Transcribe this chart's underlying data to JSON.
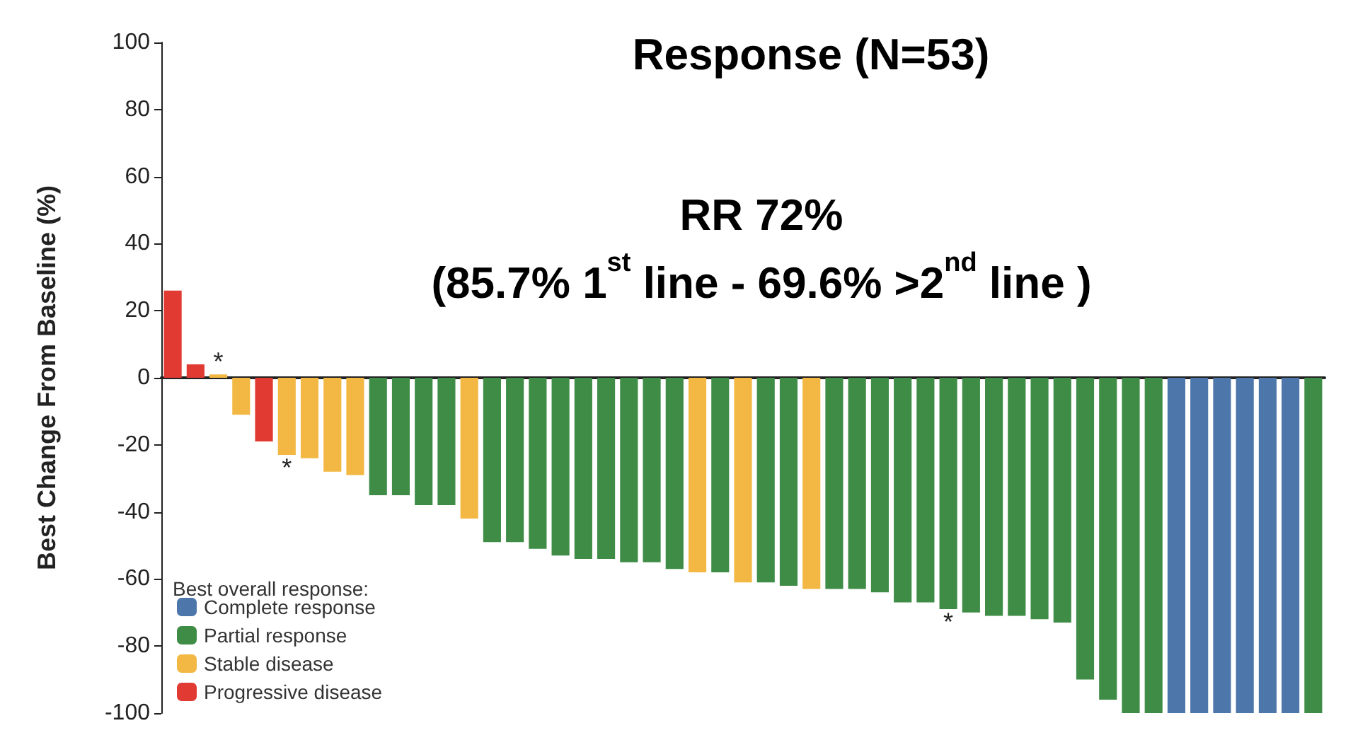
{
  "chart_data": {
    "type": "bar",
    "title": "Response (N=53)",
    "subtitle": "RR 72%\n(85.7% 1$^{st}$ line - 69.6% >2$^{nd}$ line )",
    "ylabel": "Best Change From Baseline (%)",
    "legend_title": "Best overall response:",
    "legend": "bottom left",
    "stacked": true,
    "categories": [
      null,
      null,
      null,
      null,
      null,
      null,
      null,
      null,
      null,
      null,
      null,
      null,
      null,
      null,
      null,
      null,
      null,
      null,
      null,
      null,
      null,
      null,
      null,
      null,
      null,
      null,
      null,
      null,
      null,
      null,
      null,
      null,
      null,
      null,
      null,
      null,
      null,
      null,
      null,
      null,
      null,
      null,
      null,
      null,
      null,
      null,
      null,
      null,
      null,
      null,
      null
    ],
    "ylim": [
      -100,
      100
    ],
    "yticks": [
      -100,
      -80,
      -60,
      -40,
      -20,
      0,
      20,
      40,
      60,
      80,
      100
    ],
    "series": [
      {
        "name": "Complete response",
        "color": "#4d76aa",
        "values": [
          null,
          null,
          null,
          null,
          null,
          null,
          null,
          null,
          null,
          null,
          null,
          null,
          null,
          null,
          null,
          null,
          null,
          null,
          null,
          null,
          null,
          null,
          null,
          null,
          null,
          null,
          null,
          null,
          null,
          null,
          null,
          null,
          null,
          null,
          null,
          null,
          null,
          null,
          null,
          null,
          null,
          null,
          null,
          null,
          -100,
          -100,
          -100,
          -100,
          -100,
          -100,
          null
        ]
      },
      {
        "name": "Partial response",
        "color": "#3e8c45",
        "values": [
          null,
          null,
          null,
          null,
          null,
          null,
          null,
          null,
          null,
          -35,
          -35,
          -38,
          -38,
          null,
          -49,
          -49,
          -51,
          -53,
          -54,
          -54,
          -55,
          -55,
          -57,
          null,
          -58,
          null,
          -61,
          -62,
          null,
          -63,
          -63,
          -64,
          -67,
          -67,
          -69,
          -70,
          -71,
          -71,
          -72,
          -73,
          -90,
          -96,
          -100,
          -100,
          null,
          null,
          null,
          null,
          null,
          null,
          -100
        ],
        "value_labels": [
          null,
          null,
          null,
          null,
          null,
          null,
          null,
          null,
          null,
          null,
          null,
          null,
          null,
          null,
          null,
          null,
          null,
          null,
          null,
          null,
          null,
          null,
          null,
          null,
          null,
          null,
          null,
          null,
          null,
          null,
          null,
          null,
          null,
          null,
          "*",
          null,
          null,
          null,
          null,
          null,
          null,
          null,
          null,
          null,
          null,
          null,
          null,
          null,
          null,
          null,
          null
        ]
      },
      {
        "name": "Stable disease",
        "color": "#f2b843",
        "values": [
          null,
          null,
          1,
          -11,
          null,
          -23,
          -24,
          -28,
          -29,
          null,
          null,
          null,
          null,
          -42,
          null,
          null,
          null,
          null,
          null,
          null,
          null,
          null,
          null,
          -58,
          null,
          -61,
          null,
          null,
          -63,
          null,
          null,
          null,
          null,
          null,
          null,
          null,
          null,
          null,
          null,
          null,
          null,
          null,
          null,
          null,
          null,
          null,
          null,
          null,
          null,
          null,
          null
        ],
        "value_labels": [
          null,
          null,
          "*",
          null,
          null,
          "*",
          null,
          null,
          null,
          null,
          null,
          null,
          null,
          null,
          null,
          null,
          null,
          null,
          null,
          null,
          null,
          null,
          null,
          null,
          null,
          null,
          null,
          null,
          null,
          null,
          null,
          null,
          null,
          null,
          null,
          null,
          null,
          null,
          null,
          null,
          null,
          null,
          null,
          null,
          null,
          null,
          null,
          null,
          null,
          null,
          null
        ]
      },
      {
        "name": "Progressive disease",
        "color": "#e03a33",
        "values": [
          26,
          4,
          null,
          null,
          -19,
          null,
          null,
          null,
          null,
          null,
          null,
          null,
          null,
          null,
          null,
          null,
          null,
          null,
          null,
          null,
          null,
          null,
          null,
          null,
          null,
          null,
          null,
          null,
          null,
          null,
          null,
          null,
          null,
          null,
          null,
          null,
          null,
          null,
          null,
          null,
          null,
          null,
          null,
          null,
          null,
          null,
          null,
          null,
          null,
          null,
          null
        ]
      }
    ]
  }
}
